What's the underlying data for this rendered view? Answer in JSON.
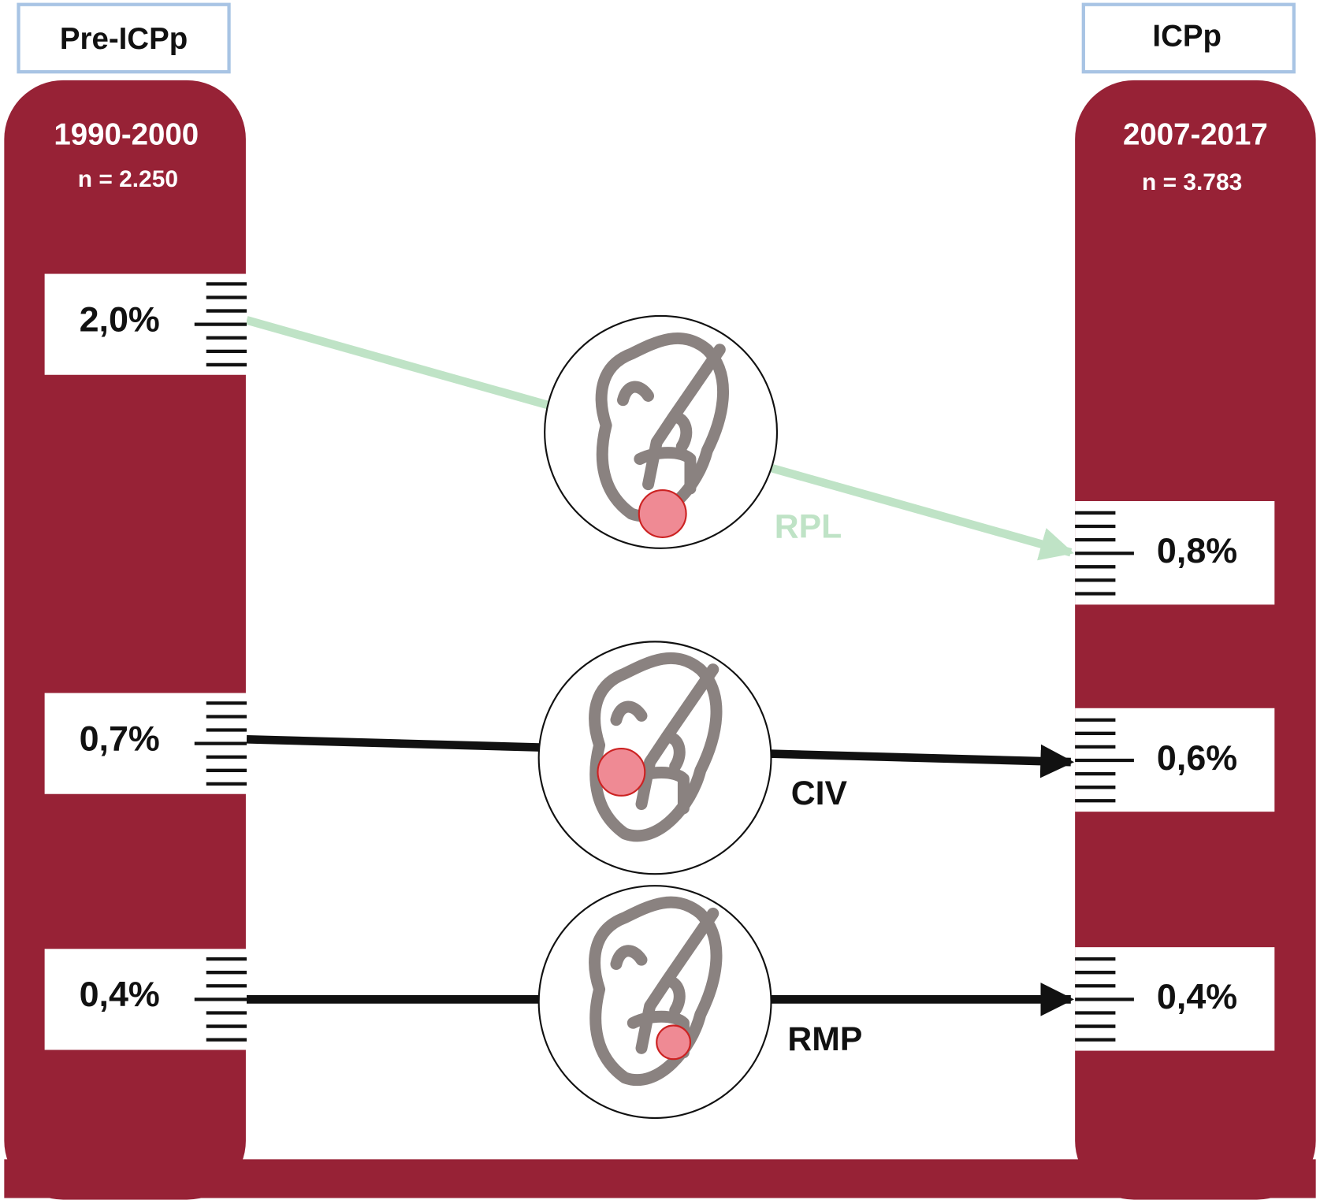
{
  "header": {
    "left": "Pre-ICPp",
    "right": "ICPp"
  },
  "periods": {
    "left": {
      "years": "1990-2000",
      "n": "n = 2.250"
    },
    "right": {
      "years": "2007-2017",
      "n": "n = 3.783"
    }
  },
  "rows": [
    {
      "label": "RPL",
      "before": "2,0%",
      "after": "0,8%"
    },
    {
      "label": "CIV",
      "before": "0,7%",
      "after": "0,6%"
    },
    {
      "label": "RMP",
      "before": "0,4%",
      "after": "0,4%"
    }
  ]
}
